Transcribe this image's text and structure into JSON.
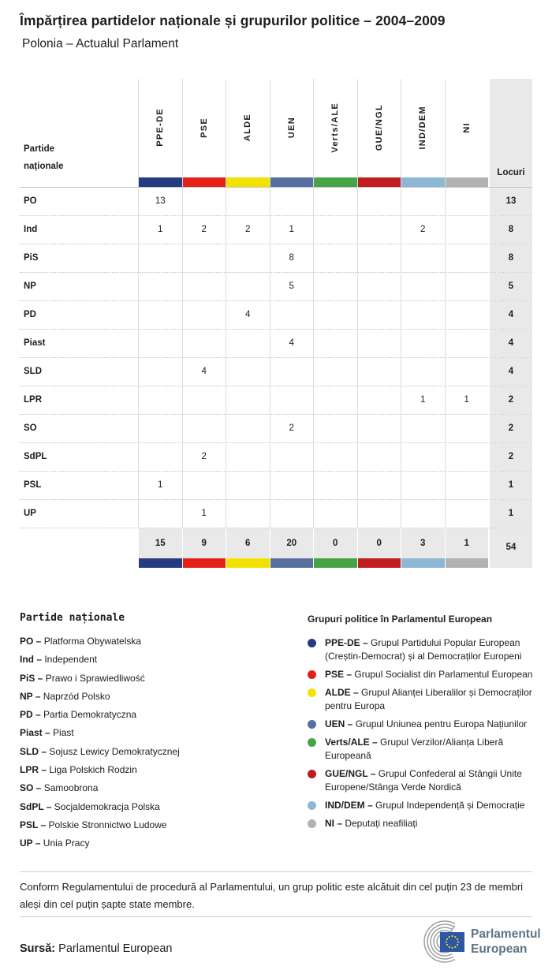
{
  "header": {
    "title": "Împărțirea partidelor naționale și grupurilor politice – 2004–2009",
    "subtitle": "Polonia – Actualul Parlament"
  },
  "table": {
    "left_header": "Partide naționale",
    "seats_header": "Locuri"
  },
  "chart_data": {
    "type": "table",
    "title": "Împărțirea partidelor naționale și grupurilor politice – 2004–2009 / Polonia – Actualul Parlament",
    "columns": [
      "PPE-DE",
      "PSE",
      "ALDE",
      "UEN",
      "Verts/ALE",
      "GUE/NGL",
      "IND/DEM",
      "NI"
    ],
    "column_colors": [
      "#253c80",
      "#e32119",
      "#f2e204",
      "#546fa0",
      "#44a446",
      "#bf1d1f",
      "#8db8d5",
      "#b2b2b2"
    ],
    "rows": [
      {
        "party": "PO",
        "values": [
          "13",
          "",
          "",
          "",
          "",
          "",
          "",
          ""
        ],
        "seats": "13"
      },
      {
        "party": "Ind",
        "values": [
          "1",
          "2",
          "2",
          "1",
          "",
          "",
          "2",
          ""
        ],
        "seats": "8"
      },
      {
        "party": "PiS",
        "values": [
          "",
          "",
          "",
          "8",
          "",
          "",
          "",
          ""
        ],
        "seats": "8"
      },
      {
        "party": "NP",
        "values": [
          "",
          "",
          "",
          "5",
          "",
          "",
          "",
          ""
        ],
        "seats": "5"
      },
      {
        "party": "PD",
        "values": [
          "",
          "",
          "4",
          "",
          "",
          "",
          "",
          ""
        ],
        "seats": "4"
      },
      {
        "party": "Piast",
        "values": [
          "",
          "",
          "",
          "4",
          "",
          "",
          "",
          ""
        ],
        "seats": "4"
      },
      {
        "party": "SLD",
        "values": [
          "",
          "4",
          "",
          "",
          "",
          "",
          "",
          ""
        ],
        "seats": "4"
      },
      {
        "party": "LPR",
        "values": [
          "",
          "",
          "",
          "",
          "",
          "",
          "1",
          "1"
        ],
        "seats": "2"
      },
      {
        "party": "SO",
        "values": [
          "",
          "",
          "",
          "2",
          "",
          "",
          "",
          ""
        ],
        "seats": "2"
      },
      {
        "party": "SdPL",
        "values": [
          "",
          "2",
          "",
          "",
          "",
          "",
          "",
          ""
        ],
        "seats": "2"
      },
      {
        "party": "PSL",
        "values": [
          "1",
          "",
          "",
          "",
          "",
          "",
          "",
          ""
        ],
        "seats": "1"
      },
      {
        "party": "UP",
        "values": [
          "",
          "1",
          "",
          "",
          "",
          "",
          "",
          ""
        ],
        "seats": "1"
      }
    ],
    "totals": {
      "values": [
        "15",
        "9",
        "6",
        "20",
        "0",
        "0",
        "3",
        "1"
      ],
      "seats": "54"
    }
  },
  "legend_parties": {
    "heading": "Partide naționale",
    "items": [
      {
        "abbr": "PO",
        "name": "Platforma Obywatelska"
      },
      {
        "abbr": "Ind",
        "name": "Independent"
      },
      {
        "abbr": "PiS",
        "name": "Prawo i Sprawiedliwość"
      },
      {
        "abbr": "NP",
        "name": "Naprzód Polsko"
      },
      {
        "abbr": "PD",
        "name": "Partia Demokratyczna"
      },
      {
        "abbr": "Piast",
        "name": "Piast"
      },
      {
        "abbr": "SLD",
        "name": "Sojusz Lewicy Demokratycznej"
      },
      {
        "abbr": "LPR",
        "name": "Liga Polskich Rodzin"
      },
      {
        "abbr": "SO",
        "name": "Samoobrona"
      },
      {
        "abbr": "SdPL",
        "name": "Socjaldemokracja Polska"
      },
      {
        "abbr": "PSL",
        "name": "Polskie Stronnictwo Ludowe"
      },
      {
        "abbr": "UP",
        "name": "Unia Pracy"
      }
    ]
  },
  "legend_groups": {
    "heading": "Grupuri politice în Parlamentul European",
    "items": [
      {
        "abbr": "PPE-DE",
        "color": "#253c80",
        "name": "Grupul Partidului Popular European (Creștin-Democrat) și al Democraților Europeni"
      },
      {
        "abbr": "PSE",
        "color": "#e32119",
        "name": "Grupul Socialist din Parlamentul European"
      },
      {
        "abbr": "ALDE",
        "color": "#f2e204",
        "name": "Grupul Alianței Liberalilor și Democraților pentru Europa"
      },
      {
        "abbr": "UEN",
        "color": "#546fa0",
        "name": "Grupul Uniunea pentru Europa Națiunilor"
      },
      {
        "abbr": "Verts/ALE",
        "color": "#44a446",
        "name": "Grupul Verzilor/Alianța Liberă Europeană"
      },
      {
        "abbr": "GUE/NGL",
        "color": "#bf1d1f",
        "name": "Grupul Confederal al Stângii Unite Europene/Stânga Verde Nordică"
      },
      {
        "abbr": "IND/DEM",
        "color": "#8db8d5",
        "name": "Grupul Independență și Democrație"
      },
      {
        "abbr": "NI",
        "color": "#b2b2b2",
        "name": "Deputați neafiliați"
      }
    ]
  },
  "footer": {
    "note": "Conform Regulamentului de procedură al Parlamentului, un grup politic este alcătuit din cel puțin 23 de membri aleși din cel puțin șapte state membre.",
    "source_label": "Sursă:",
    "source_value": "Parlamentul European",
    "logo_line1": "Parlamentul",
    "logo_line2": "European"
  }
}
